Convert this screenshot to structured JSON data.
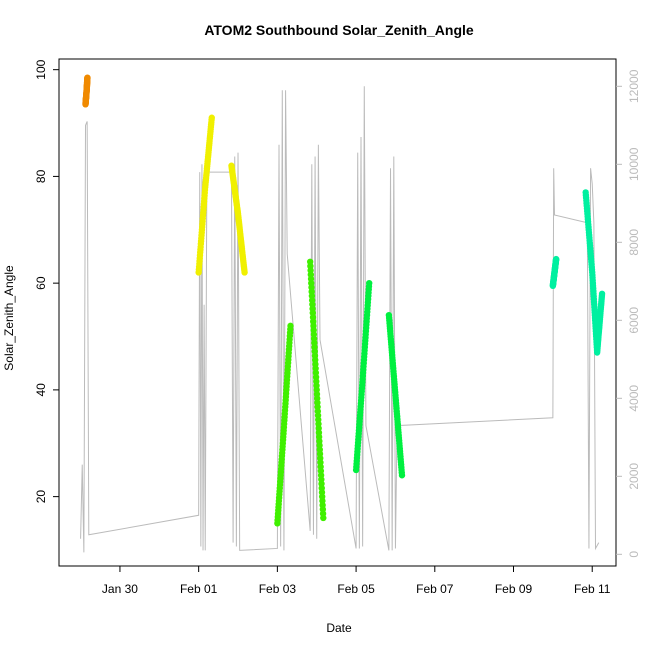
{
  "chart_data": {
    "type": "scatter",
    "title": "ATOM2 Southbound Solar_Zenith_Angle",
    "xlabel": "Date",
    "ylabel": "Solar_Zenith_Angle",
    "x_axis": {
      "type": "date",
      "range": [
        "2024-01-28T10:50",
        "2024-02-11T14:30"
      ],
      "ticks": [
        {
          "date": "2024-01-30",
          "label": "Jan 30"
        },
        {
          "date": "2024-02-01",
          "label": "Feb 01"
        },
        {
          "date": "2024-02-03",
          "label": "Feb 03"
        },
        {
          "date": "2024-02-05",
          "label": "Feb 05"
        },
        {
          "date": "2024-02-07",
          "label": "Feb 07"
        },
        {
          "date": "2024-02-09",
          "label": "Feb 09"
        },
        {
          "date": "2024-02-11",
          "label": "Feb 11"
        }
      ]
    },
    "y_left": {
      "range": [
        7,
        102
      ],
      "ticks": [
        20,
        40,
        60,
        80,
        100
      ],
      "color": "#000000"
    },
    "y_right": {
      "range": [
        -300,
        12700
      ],
      "ticks": [
        0,
        2000,
        4000,
        6000,
        8000,
        10000,
        12000
      ],
      "color": "#bbbbbb"
    },
    "grid": false,
    "legend": "none",
    "series": [
      {
        "color": "#f08a00",
        "points": [
          [
            "2024-01-29T03:00",
            93.5
          ],
          [
            "2024-01-29T03:40",
            96
          ],
          [
            "2024-01-29T04:10",
            98.5
          ]
        ]
      },
      {
        "color": "#f0f000",
        "points": [
          [
            "2024-02-01T00:00",
            62
          ],
          [
            "2024-02-01T04:00",
            78
          ],
          [
            "2024-02-01T08:00",
            91
          ]
        ]
      },
      {
        "color": "#f0f000",
        "points": [
          [
            "2024-02-01T20:00",
            82
          ],
          [
            "2024-02-02T00:00",
            73
          ],
          [
            "2024-02-02T04:00",
            62
          ]
        ]
      },
      {
        "color": "#40f000",
        "points": [
          [
            "2024-02-03T00:00",
            15
          ],
          [
            "2024-02-03T04:00",
            33
          ],
          [
            "2024-02-03T08:00",
            52
          ]
        ]
      },
      {
        "color": "#40f000",
        "points": [
          [
            "2024-02-03T20:00",
            64
          ],
          [
            "2024-02-04T00:00",
            40
          ],
          [
            "2024-02-04T04:00",
            16
          ]
        ]
      },
      {
        "color": "#00f040",
        "points": [
          [
            "2024-02-05T00:00",
            25
          ],
          [
            "2024-02-05T04:00",
            42
          ],
          [
            "2024-02-05T08:00",
            60
          ]
        ]
      },
      {
        "color": "#00f040",
        "points": [
          [
            "2024-02-05T20:00",
            54
          ],
          [
            "2024-02-06T00:00",
            39
          ],
          [
            "2024-02-06T04:00",
            24
          ]
        ]
      },
      {
        "color": "#00f0a0",
        "points": [
          [
            "2024-02-10T00:00",
            59.5
          ],
          [
            "2024-02-10T01:00",
            62
          ],
          [
            "2024-02-10T02:00",
            64.5
          ]
        ]
      },
      {
        "color": "#00f0a0",
        "points": [
          [
            "2024-02-10T20:00",
            77
          ],
          [
            "2024-02-11T00:00",
            62
          ],
          [
            "2024-02-11T03:00",
            47
          ],
          [
            "2024-02-11T06:00",
            58
          ]
        ]
      }
    ],
    "secondary_line": {
      "color": "#bbbbbb",
      "points": [
        [
          "2024-01-29T00:00",
          400
        ],
        [
          "2024-01-29T01:00",
          2300
        ],
        [
          "2024-01-29T02:00",
          50
        ],
        [
          "2024-01-29T03:00",
          11000
        ],
        [
          "2024-01-29T04:00",
          11100
        ],
        [
          "2024-01-29T05:00",
          500
        ],
        [
          "2024-02-01T00:00",
          1000
        ],
        [
          "2024-02-01T00:40",
          9800
        ],
        [
          "2024-02-01T01:20",
          200
        ],
        [
          "2024-02-01T02:00",
          10000
        ],
        [
          "2024-02-01T02:40",
          100
        ],
        [
          "2024-02-01T03:20",
          6400
        ],
        [
          "2024-02-01T04:00",
          100
        ],
        [
          "2024-02-01T05:00",
          9800
        ],
        [
          "2024-02-01T20:00",
          9800
        ],
        [
          "2024-02-01T21:00",
          300
        ],
        [
          "2024-02-01T22:00",
          10200
        ],
        [
          "2024-02-01T23:00",
          200
        ],
        [
          "2024-02-02T00:00",
          10300
        ],
        [
          "2024-02-02T01:00",
          100
        ],
        [
          "2024-02-03T00:00",
          150
        ],
        [
          "2024-02-03T01:00",
          10500
        ],
        [
          "2024-02-03T02:00",
          200
        ],
        [
          "2024-02-03T03:00",
          11900
        ],
        [
          "2024-02-03T04:00",
          100
        ],
        [
          "2024-02-03T05:00",
          11900
        ],
        [
          "2024-02-03T06:00",
          7700
        ],
        [
          "2024-02-03T20:00",
          600
        ],
        [
          "2024-02-03T21:00",
          10000
        ],
        [
          "2024-02-03T22:00",
          500
        ],
        [
          "2024-02-03T23:00",
          10200
        ],
        [
          "2024-02-04T00:00",
          400
        ],
        [
          "2024-02-04T01:00",
          10500
        ],
        [
          "2024-02-04T02:00",
          5500
        ],
        [
          "2024-02-05T00:00",
          150
        ],
        [
          "2024-02-05T01:00",
          10300
        ],
        [
          "2024-02-05T02:00",
          150
        ],
        [
          "2024-02-05T03:00",
          10700
        ],
        [
          "2024-02-05T04:00",
          200
        ],
        [
          "2024-02-05T05:00",
          12000
        ],
        [
          "2024-02-05T06:00",
          3300
        ],
        [
          "2024-02-05T20:00",
          100
        ],
        [
          "2024-02-05T21:00",
          9900
        ],
        [
          "2024-02-05T22:00",
          100
        ],
        [
          "2024-02-05T23:00",
          10200
        ],
        [
          "2024-02-06T00:00",
          150
        ],
        [
          "2024-02-06T01:00",
          3300
        ],
        [
          "2024-02-10T00:00",
          3500
        ],
        [
          "2024-02-10T00:30",
          9900
        ],
        [
          "2024-02-10T01:00",
          8700
        ],
        [
          "2024-02-10T21:00",
          8500
        ],
        [
          "2024-02-10T22:00",
          150
        ],
        [
          "2024-02-10T23:00",
          9900
        ],
        [
          "2024-02-11T00:00",
          9500
        ],
        [
          "2024-02-11T01:00",
          8500
        ],
        [
          "2024-02-11T02:00",
          150
        ],
        [
          "2024-02-11T04:00",
          300
        ]
      ]
    }
  }
}
